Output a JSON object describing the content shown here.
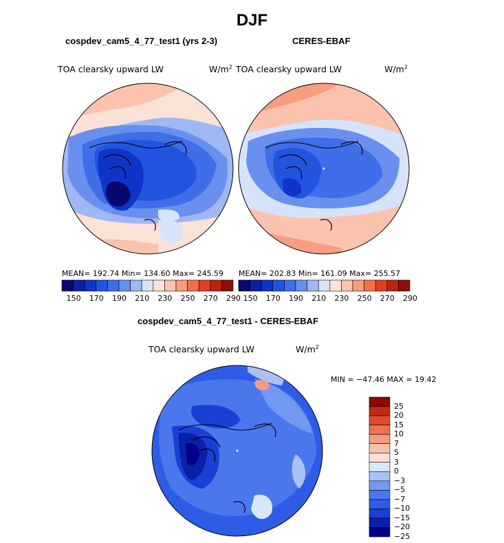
{
  "figure": {
    "title": "DJF"
  },
  "colors": {
    "palette": [
      "#08086e",
      "#0b1fa8",
      "#0f35c8",
      "#2155e0",
      "#3f6ee8",
      "#6990ef",
      "#9fb7f4",
      "#d7e3f9",
      "#fbe2d6",
      "#fbc3ae",
      "#f99d80",
      "#f36f4d",
      "#e1401f",
      "#bb2311",
      "#8a0f06"
    ],
    "diff_palette": [
      "#00008a",
      "#0b1fa8",
      "#1a3fd6",
      "#2f5ce6",
      "#4a78ec",
      "#7398f0",
      "#a9c2f5",
      "#d9e6fa",
      "#fbe0d3",
      "#f9c1aa",
      "#f69b7e",
      "#ee7252",
      "#e2492a",
      "#c42a10",
      "#8a0a02"
    ]
  },
  "panels": [
    {
      "title": "cospdev_cam5_4_77_test1 (yrs 2-3)",
      "variable": "TOA clearsky upward LW",
      "units": "W/m",
      "units_exp": "2",
      "stats": "MEAN= 192.74   Min= 134.60   Max= 245.59"
    },
    {
      "title": "CERES-EBAF",
      "variable": "TOA clearsky upward LW",
      "units": "W/m",
      "units_exp": "2",
      "stats": "MEAN= 202.83   Min= 161.09   Max= 255.57"
    }
  ],
  "colorbar": {
    "ticks": [
      "150",
      "170",
      "190",
      "210",
      "230",
      "250",
      "270",
      "290"
    ]
  },
  "difference": {
    "title": "cospdev_cam5_4_77_test1 - CERES-EBAF",
    "variable": "TOA clearsky upward LW",
    "units": "W/m",
    "units_exp": "2",
    "stats": "MIN = −47.46  MAX =   19.42",
    "colorbar_ticks": [
      "25",
      "20",
      "15",
      "10",
      "7",
      "5",
      "3",
      "0",
      "−3",
      "−5",
      "−7",
      "−10",
      "−15",
      "−20",
      "−25"
    ]
  }
}
